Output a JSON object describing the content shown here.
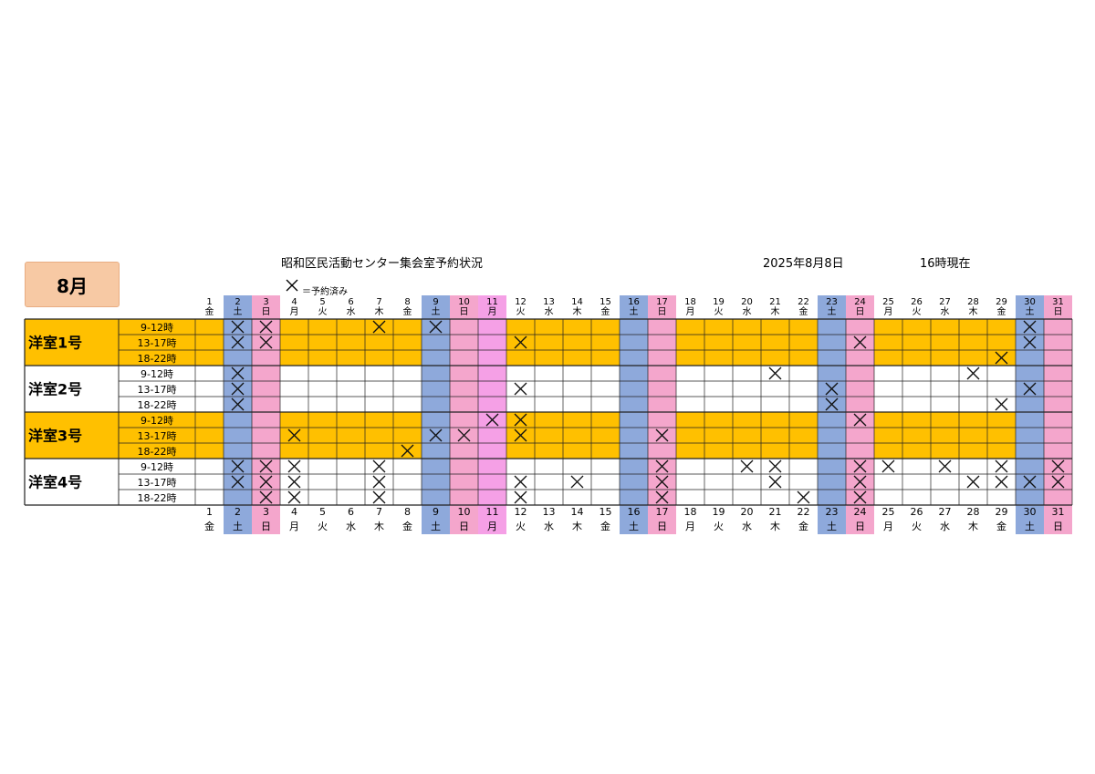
{
  "header": {
    "month_label": "8月",
    "title": "昭和区民活動センター集会室予約状況",
    "date": "2025年8月8日",
    "time": "16時現在",
    "legend": "＝予約済み"
  },
  "colors": {
    "saturday": "#8ea9db",
    "sunday": "#f4a6cc",
    "holiday": "#f5a0e6",
    "orange": "#ffc000",
    "white": "#ffffff"
  },
  "days": [
    {
      "d": "1",
      "w": "金"
    },
    {
      "d": "2",
      "w": "土"
    },
    {
      "d": "3",
      "w": "日"
    },
    {
      "d": "4",
      "w": "月"
    },
    {
      "d": "5",
      "w": "火"
    },
    {
      "d": "6",
      "w": "水"
    },
    {
      "d": "7",
      "w": "木"
    },
    {
      "d": "8",
      "w": "金"
    },
    {
      "d": "9",
      "w": "土"
    },
    {
      "d": "10",
      "w": "日"
    },
    {
      "d": "11",
      "w": "月"
    },
    {
      "d": "12",
      "w": "火"
    },
    {
      "d": "13",
      "w": "水"
    },
    {
      "d": "14",
      "w": "木"
    },
    {
      "d": "15",
      "w": "金"
    },
    {
      "d": "16",
      "w": "土"
    },
    {
      "d": "17",
      "w": "日"
    },
    {
      "d": "18",
      "w": "月"
    },
    {
      "d": "19",
      "w": "火"
    },
    {
      "d": "20",
      "w": "水"
    },
    {
      "d": "21",
      "w": "木"
    },
    {
      "d": "22",
      "w": "金"
    },
    {
      "d": "23",
      "w": "土"
    },
    {
      "d": "24",
      "w": "日"
    },
    {
      "d": "25",
      "w": "月"
    },
    {
      "d": "26",
      "w": "火"
    },
    {
      "d": "27",
      "w": "水"
    },
    {
      "d": "28",
      "w": "木"
    },
    {
      "d": "29",
      "w": "金"
    },
    {
      "d": "30",
      "w": "土"
    },
    {
      "d": "31",
      "w": "日"
    }
  ],
  "holidays": [
    "11"
  ],
  "rooms": [
    {
      "name": "洋室1号",
      "style": "orange",
      "slots": [
        {
          "time": "9-12時",
          "booked": [
            2,
            3,
            7,
            9,
            30
          ]
        },
        {
          "time": "13-17時",
          "booked": [
            2,
            3,
            12,
            24,
            30
          ]
        },
        {
          "time": "18-22時",
          "booked": [
            29
          ]
        }
      ]
    },
    {
      "name": "洋室2号",
      "style": "white",
      "slots": [
        {
          "time": "9-12時",
          "booked": [
            2,
            21,
            28
          ]
        },
        {
          "time": "13-17時",
          "booked": [
            2,
            12,
            23,
            30
          ]
        },
        {
          "time": "18-22時",
          "booked": [
            2,
            23,
            29
          ]
        }
      ]
    },
    {
      "name": "洋室3号",
      "style": "orange",
      "slots": [
        {
          "time": "9-12時",
          "booked": [
            11,
            12,
            24
          ]
        },
        {
          "time": "13-17時",
          "booked": [
            4,
            9,
            10,
            12,
            17
          ]
        },
        {
          "time": "18-22時",
          "booked": [
            8
          ]
        }
      ]
    },
    {
      "name": "洋室4号",
      "style": "white",
      "slots": [
        {
          "time": "9-12時",
          "booked": [
            2,
            3,
            4,
            7,
            17,
            20,
            21,
            24,
            25,
            27,
            29,
            31
          ]
        },
        {
          "time": "13-17時",
          "booked": [
            2,
            3,
            4,
            7,
            12,
            14,
            17,
            21,
            24,
            28,
            29,
            30,
            31
          ]
        },
        {
          "time": "18-22時",
          "booked": [
            3,
            4,
            7,
            12,
            17,
            22,
            24
          ]
        }
      ]
    }
  ]
}
